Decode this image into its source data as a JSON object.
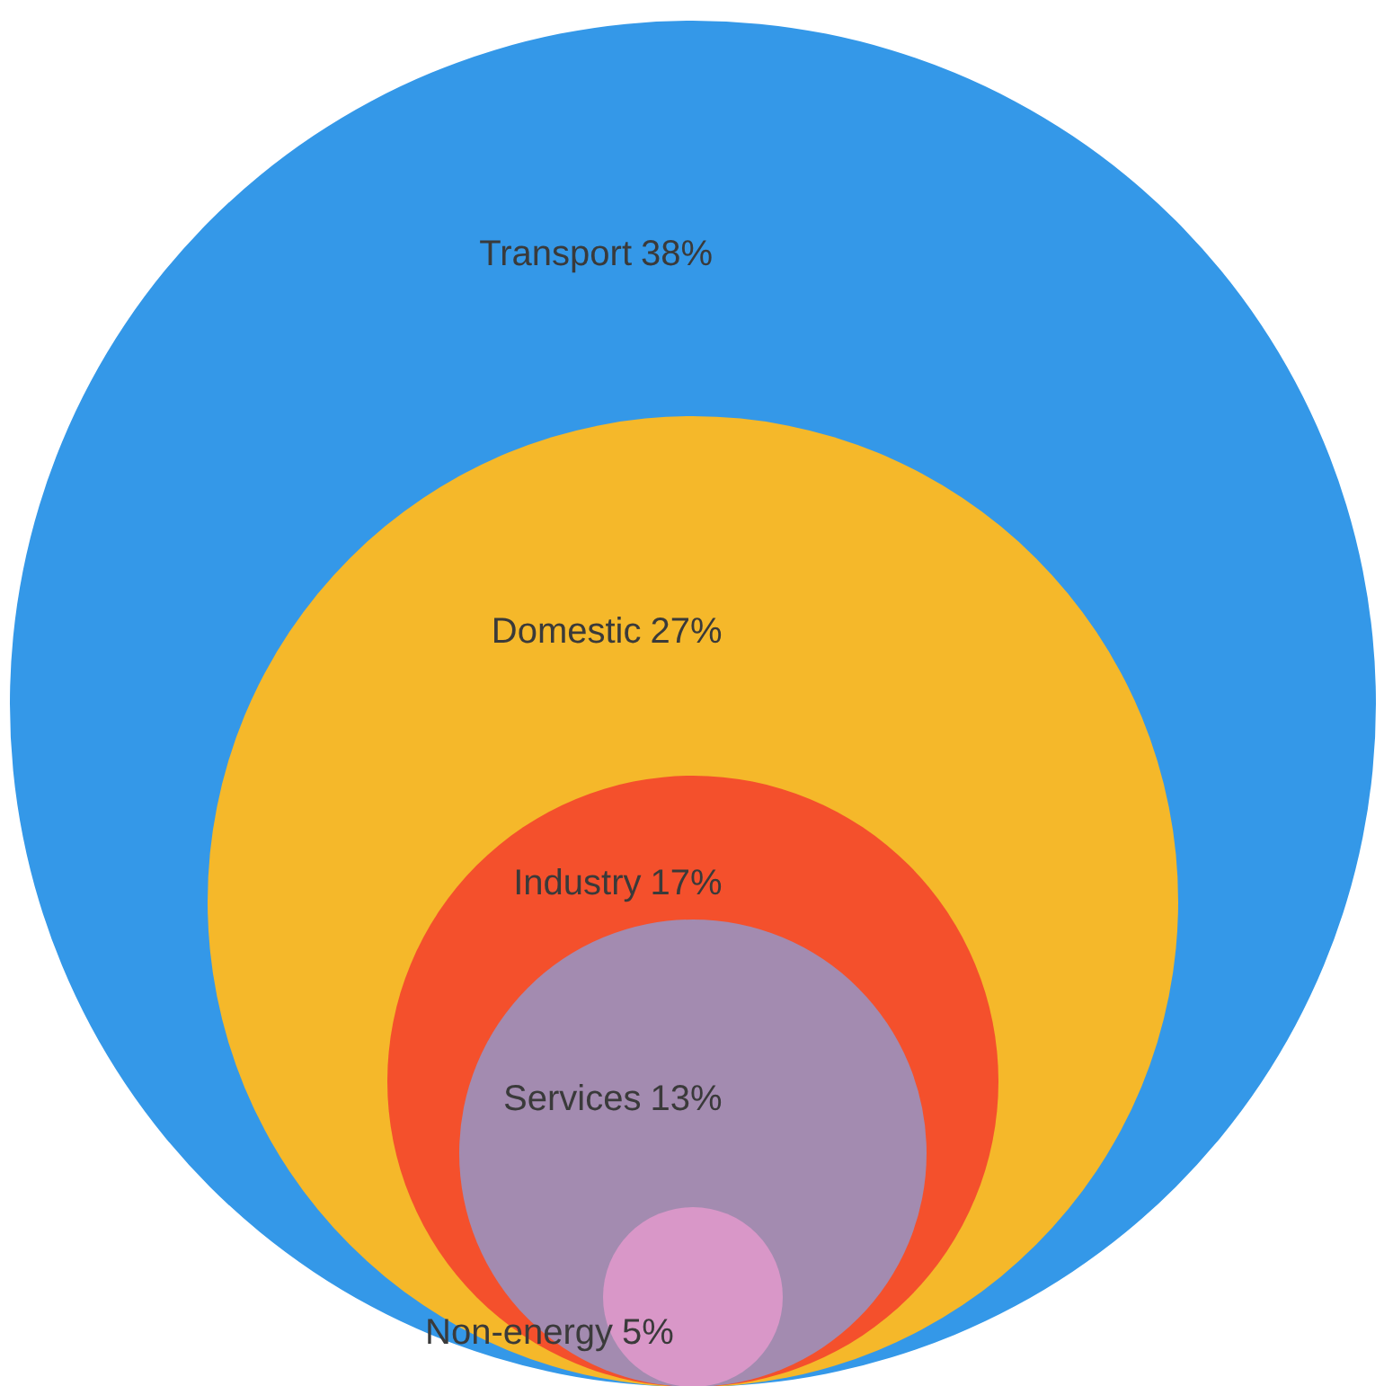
{
  "chart_data": {
    "type": "other",
    "categories": [
      "Transport",
      "Domestic",
      "Industry",
      "Services",
      "Non-energy"
    ],
    "values": [
      38,
      27,
      17,
      13,
      5
    ],
    "value_labels": [
      "38%",
      "27%",
      "17%",
      "13%",
      "5%"
    ],
    "colors": [
      "#3498e8",
      "#f5b82a",
      "#f4502c",
      "#a38bb0",
      "#d997c8"
    ]
  }
}
